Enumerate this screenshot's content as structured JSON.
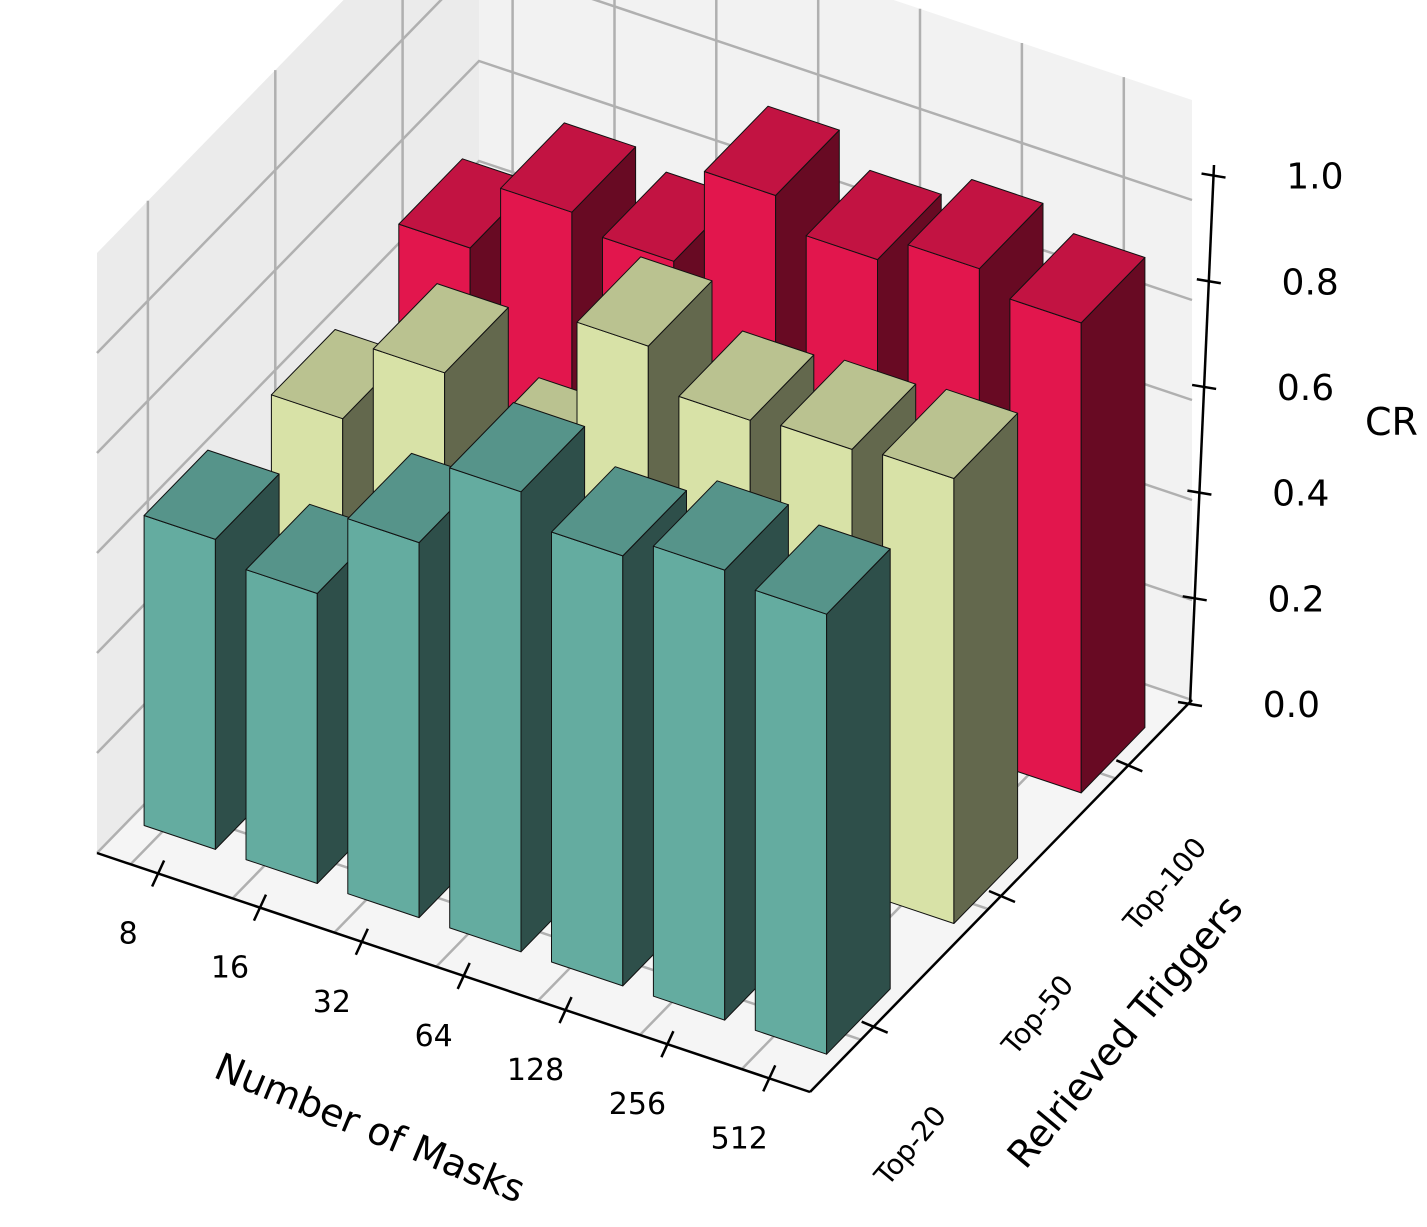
{
  "chart_data": {
    "type": "bar",
    "subtype": "3d-bar",
    "title": "",
    "xlabel": "Number of Masks",
    "ylabel": "Relrieved Triggers",
    "zlabel": "CR",
    "categories": [
      "8",
      "16",
      "32",
      "64",
      "128",
      "256",
      "512"
    ],
    "zlim": [
      0.0,
      1.0
    ],
    "zticks": [
      "0.0",
      "0.2",
      "0.4",
      "0.6",
      "0.8",
      "1.0"
    ],
    "grid": true,
    "legend": "none",
    "series": [
      {
        "name": "Top-20",
        "color": "#64aca0",
        "values": [
          0.62,
          0.58,
          0.75,
          0.92,
          0.86,
          0.9,
          0.88
        ]
      },
      {
        "name": "Top-50",
        "color": "#d8e2a7",
        "values": [
          0.6,
          0.76,
          0.64,
          0.95,
          0.87,
          0.88,
          0.89
        ]
      },
      {
        "name": "Top-100",
        "color": "#e2164d",
        "values": [
          0.68,
          0.82,
          0.79,
          0.99,
          0.93,
          0.98,
          0.94
        ]
      }
    ]
  }
}
